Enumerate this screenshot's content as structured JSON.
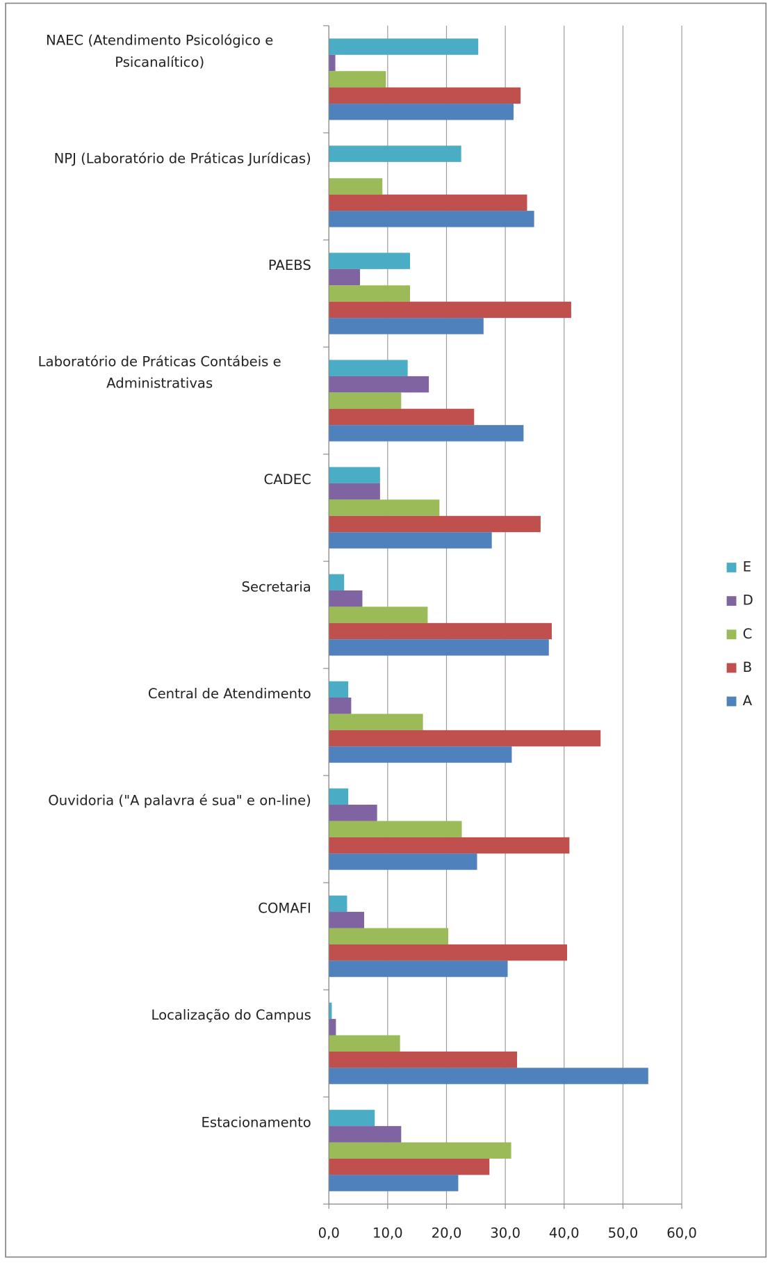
{
  "chart_data": {
    "type": "barh",
    "categories": [
      "NAEC (Atendimento Psicológico e Psicanalítico)",
      "NPJ (Laboratório de Práticas Jurídicas)",
      "PAEBS",
      "Laboratório de Práticas Contábeis e Administrativas",
      "CADEC",
      "Secretaria",
      "Central de Atendimento",
      "Ouvidoria (\"A palavra é sua\" e on-line)",
      "COMAFI",
      "Localização do Campus",
      "Estacionamento"
    ],
    "series": [
      {
        "name": "E",
        "color": "#4bacc6",
        "values": [
          25.4,
          22.5,
          13.8,
          13.4,
          8.7,
          2.6,
          3.3,
          3.3,
          3.1,
          0.5,
          7.8
        ]
      },
      {
        "name": "D",
        "color": "#8064a2",
        "values": [
          1.1,
          0,
          5.3,
          17.0,
          8.7,
          5.7,
          3.8,
          8.2,
          6.0,
          1.2,
          12.3
        ]
      },
      {
        "name": "C",
        "color": "#9bbb59",
        "values": [
          9.7,
          9.1,
          13.8,
          12.3,
          18.8,
          16.8,
          16.0,
          22.6,
          20.3,
          12.1,
          31.0
        ]
      },
      {
        "name": "B",
        "color": "#c0504d",
        "values": [
          32.6,
          33.7,
          41.2,
          24.7,
          36.0,
          37.9,
          46.2,
          40.9,
          40.5,
          32.0,
          27.3
        ]
      },
      {
        "name": "A",
        "color": "#4f81bd",
        "values": [
          31.4,
          34.9,
          26.3,
          33.1,
          27.7,
          37.4,
          31.1,
          25.2,
          30.4,
          54.3,
          22.0
        ]
      }
    ],
    "xlim": [
      0,
      60
    ],
    "xticks": [
      {
        "value": 0,
        "label": "0,0"
      },
      {
        "value": 10,
        "label": "10,0"
      },
      {
        "value": 20,
        "label": "20,0"
      },
      {
        "value": 30,
        "label": "30,0"
      },
      {
        "value": 40,
        "label": "40,0"
      },
      {
        "value": 50,
        "label": "50,0"
      },
      {
        "value": 60,
        "label": "60,0"
      }
    ],
    "grid": true,
    "legend": "right"
  }
}
